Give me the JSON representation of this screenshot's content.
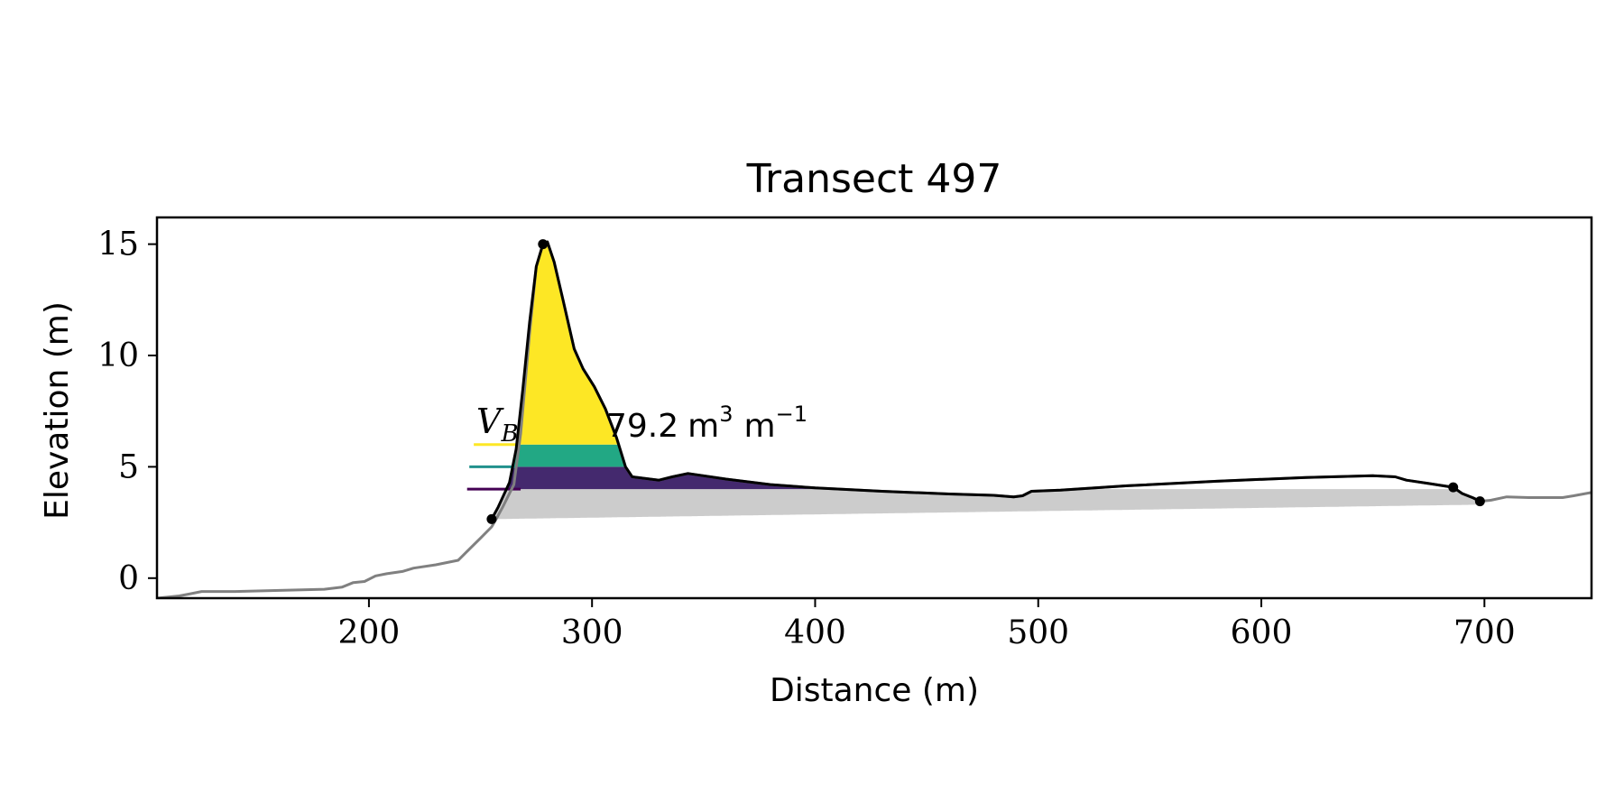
{
  "chart_data": {
    "type": "area",
    "title": "Transect 497",
    "xlabel": "Distance (m)",
    "ylabel": "Elevation (m)",
    "xlim": [
      105,
      748
    ],
    "ylim": [
      -0.9,
      16.2
    ],
    "x_ticks": [
      200,
      300,
      400,
      500,
      600,
      700
    ],
    "y_ticks": [
      0,
      5,
      10,
      15
    ],
    "grid": false,
    "legend": "none",
    "annotation": {
      "symbol": "V",
      "subscript": "B",
      "value_text": "79.2",
      "unit_text": "m",
      "unit_sup": "3",
      "unit_text2": "m",
      "unit_sup2": "−1"
    },
    "series": [
      {
        "role": "full-profile",
        "color": "#808080",
        "points": [
          [
            105,
            -0.9
          ],
          [
            115,
            -0.8
          ],
          [
            120,
            -0.7
          ],
          [
            125,
            -0.6
          ],
          [
            140,
            -0.6
          ],
          [
            160,
            -0.55
          ],
          [
            180,
            -0.5
          ],
          [
            188,
            -0.4
          ],
          [
            193,
            -0.2
          ],
          [
            198,
            -0.15
          ],
          [
            203,
            0.1
          ],
          [
            208,
            0.2
          ],
          [
            215,
            0.3
          ],
          [
            220,
            0.45
          ],
          [
            230,
            0.6
          ],
          [
            240,
            0.8
          ],
          [
            245,
            1.3
          ],
          [
            250,
            1.8
          ],
          [
            255,
            2.3
          ],
          [
            257,
            2.65
          ],
          [
            260,
            3.2
          ],
          [
            265,
            4.2
          ],
          [
            268,
            6.5
          ],
          [
            272,
            11
          ],
          [
            275,
            14
          ],
          [
            278,
            15.0
          ],
          [
            280,
            15.1
          ],
          [
            283,
            14.2
          ],
          [
            287,
            12.5
          ],
          [
            292,
            10.3
          ],
          [
            296,
            9.4
          ],
          [
            301,
            8.6
          ],
          [
            306,
            7.6
          ],
          [
            311,
            6.3
          ],
          [
            315,
            5.0
          ],
          [
            318,
            4.55
          ],
          [
            330,
            4.4
          ],
          [
            336,
            4.55
          ],
          [
            343,
            4.7
          ],
          [
            360,
            4.45
          ],
          [
            380,
            4.2
          ],
          [
            400,
            4.05
          ],
          [
            430,
            3.9
          ],
          [
            460,
            3.78
          ],
          [
            480,
            3.72
          ],
          [
            489,
            3.65
          ],
          [
            493,
            3.7
          ],
          [
            497,
            3.9
          ],
          [
            510,
            3.95
          ],
          [
            540,
            4.15
          ],
          [
            580,
            4.35
          ],
          [
            620,
            4.52
          ],
          [
            650,
            4.6
          ],
          [
            660,
            4.55
          ],
          [
            665,
            4.4
          ],
          [
            675,
            4.25
          ],
          [
            686,
            4.08
          ],
          [
            690,
            3.8
          ],
          [
            695,
            3.6
          ],
          [
            698,
            3.45
          ],
          [
            703,
            3.5
          ],
          [
            710,
            3.65
          ],
          [
            720,
            3.62
          ],
          [
            735,
            3.62
          ],
          [
            740,
            3.7
          ],
          [
            748,
            3.85
          ]
        ]
      },
      {
        "role": "foredune-profile",
        "color": "#000000",
        "points": [
          [
            255,
            2.65
          ],
          [
            258,
            3.2
          ],
          [
            263,
            4.3
          ],
          [
            266,
            5.8
          ],
          [
            269,
            8.5
          ],
          [
            272,
            11.5
          ],
          [
            275,
            14
          ],
          [
            278,
            15.0
          ],
          [
            280,
            15.1
          ],
          [
            283,
            14.2
          ],
          [
            287,
            12.5
          ],
          [
            292,
            10.3
          ],
          [
            296,
            9.4
          ],
          [
            301,
            8.6
          ],
          [
            306,
            7.6
          ],
          [
            311,
            6.3
          ],
          [
            315,
            5.0
          ],
          [
            318,
            4.55
          ],
          [
            330,
            4.4
          ],
          [
            336,
            4.55
          ],
          [
            343,
            4.7
          ],
          [
            360,
            4.45
          ],
          [
            380,
            4.2
          ],
          [
            400,
            4.05
          ],
          [
            430,
            3.9
          ],
          [
            460,
            3.78
          ],
          [
            480,
            3.72
          ],
          [
            489,
            3.65
          ],
          [
            493,
            3.7
          ],
          [
            497,
            3.9
          ],
          [
            510,
            3.95
          ],
          [
            540,
            4.15
          ],
          [
            580,
            4.35
          ],
          [
            620,
            4.52
          ],
          [
            650,
            4.6
          ],
          [
            660,
            4.55
          ],
          [
            665,
            4.4
          ],
          [
            675,
            4.25
          ],
          [
            686,
            4.08
          ],
          [
            690,
            3.8
          ],
          [
            695,
            3.6
          ],
          [
            698,
            3.45
          ]
        ]
      }
    ],
    "key_points": [
      [
        255,
        2.65
      ],
      [
        278,
        15.0
      ],
      [
        686,
        4.08
      ],
      [
        698,
        3.45
      ]
    ],
    "base_line": [
      [
        255,
        2.65
      ],
      [
        698,
        3.3
      ]
    ],
    "levels": [
      {
        "y": 4.0,
        "color": "#440154",
        "line_x": [
          244,
          268
        ],
        "fill_to": 5.0,
        "fill_color": "#44296e",
        "fill_x_max": 420
      },
      {
        "y": 5.0,
        "color": "#21918c",
        "line_x": [
          245,
          266
        ],
        "fill_to": 6.0,
        "fill_color": "#22a884"
      },
      {
        "y": 6.0,
        "color": "#fde725",
        "line_x": [
          247,
          266
        ],
        "fill_to": 16,
        "fill_color": "#fde725"
      }
    ],
    "fill_below": {
      "color": "#cccccc"
    }
  }
}
